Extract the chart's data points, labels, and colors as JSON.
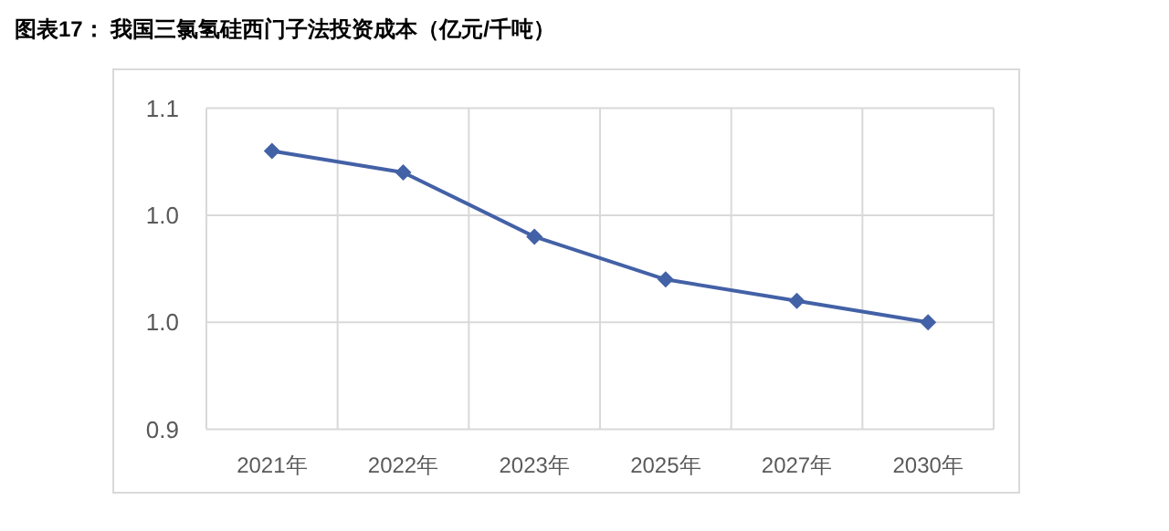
{
  "chart_data": {
    "type": "line",
    "title": "图表17：  我国三氯氢硅西门子法投资成本（亿元/千吨）",
    "categories": [
      "2021年",
      "2022年",
      "2023年",
      "2025年",
      "2027年",
      "2030年"
    ],
    "series": [
      {
        "color": "#4361a6",
        "values": [
          1.03,
          1.02,
          0.99,
          0.97,
          0.96,
          0.95
        ]
      }
    ],
    "ylim": [
      0.9,
      1.05
    ],
    "yticks": [
      {
        "value": 0.9,
        "label": "0.9"
      },
      {
        "value": 0.95,
        "label": "1.0"
      },
      {
        "value": 1.0,
        "label": "1.0"
      },
      {
        "value": 1.05,
        "label": "1.1"
      }
    ],
    "grid": true,
    "marker": "diamond",
    "line_style": "solid"
  }
}
